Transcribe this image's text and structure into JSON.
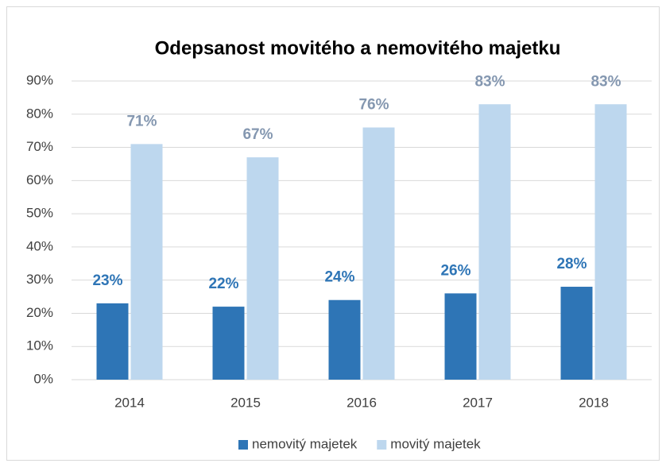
{
  "chart_data": {
    "type": "bar",
    "title": "Odepsanost movitého a nemovitého majetku",
    "categories": [
      "2014",
      "2015",
      "2016",
      "2017",
      "2018"
    ],
    "series": [
      {
        "name": "nemovitý majetek",
        "color": "#2e75b6",
        "label_color": "#2e75b6",
        "values": [
          23,
          22,
          24,
          26,
          28
        ],
        "value_labels": [
          "23%",
          "22%",
          "24%",
          "26%",
          "28%"
        ]
      },
      {
        "name": "movitý majetek",
        "color": "#bdd7ee",
        "label_color": "#8497b0",
        "values": [
          71,
          67,
          76,
          83,
          83
        ],
        "value_labels": [
          "71%",
          "67%",
          "76%",
          "83%",
          "83%"
        ]
      }
    ],
    "ylim": [
      0,
      90
    ],
    "yticks": [
      {
        "value": 0,
        "label": "0%"
      },
      {
        "value": 10,
        "label": "10%"
      },
      {
        "value": 20,
        "label": "20%"
      },
      {
        "value": 30,
        "label": "30%"
      },
      {
        "value": 40,
        "label": "40%"
      },
      {
        "value": 50,
        "label": "50%"
      },
      {
        "value": 60,
        "label": "60%"
      },
      {
        "value": 70,
        "label": "70%"
      },
      {
        "value": 80,
        "label": "80%"
      },
      {
        "value": 90,
        "label": "90%"
      }
    ],
    "grid": true,
    "legend": "bottom"
  }
}
